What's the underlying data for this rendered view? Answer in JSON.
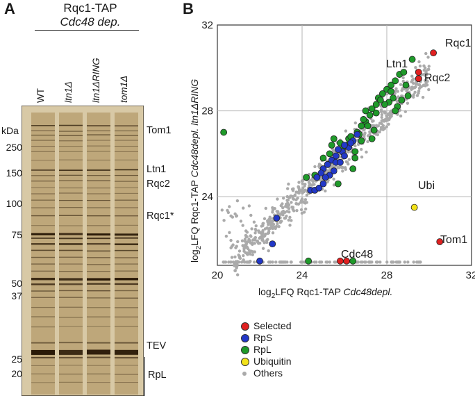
{
  "panelA": {
    "letter": "A",
    "title": "Rqc1-TAP",
    "subtitle": "Cdc48 dep.",
    "lanes": [
      "WT",
      "ltn1Δ",
      "ltn1ΔRING",
      "tom1Δ"
    ],
    "mw_unit": "kDa",
    "mw_markers": [
      "250",
      "150",
      "100",
      "75",
      "50",
      "37",
      "25",
      "20"
    ],
    "band_labels": [
      "Tom1",
      "Ltn1",
      "Rqc2",
      "Rqc1*",
      "TEV",
      "RpL"
    ]
  },
  "panelB": {
    "letter": "B",
    "annotations": [
      "Rqc1",
      "Ltn1",
      "Rqc2",
      "Ubi",
      "Tom1",
      "Cdc48"
    ],
    "colors": {
      "Selected": "#e02020",
      "RpS": "#2238c8",
      "RpL": "#1f9a2a",
      "Ubiquitin": "#f2e21a",
      "Others": "#aaaaaa"
    }
  },
  "legend": [
    {
      "label": "Selected",
      "color": "#e02020"
    },
    {
      "label": "RpS",
      "color": "#2238c8"
    },
    {
      "label": "RpL",
      "color": "#1f9a2a"
    },
    {
      "label": "Ubiquitin",
      "color": "#f2e21a"
    },
    {
      "label": "Others",
      "color": "#aaaaaa"
    }
  ],
  "chart_data": {
    "type": "scatter",
    "xlabel_pre": "log",
    "xlabel_sub": "2",
    "xlabel_mid": "LFQ Rqc1-TAP ",
    "xlabel_it": "Cdc48depl.",
    "ylabel_pre": "log",
    "ylabel_sub": "2",
    "ylabel_mid": "LFQ Rqc1-TAP ",
    "ylabel_it": "Cdc48depl. ltn1ΔRING",
    "xlim": [
      20,
      32
    ],
    "ylim": [
      20.8,
      32
    ],
    "xticks": [
      "20",
      "24",
      "28",
      "32"
    ],
    "yticks": [
      "24",
      "28",
      "32"
    ],
    "series": [
      {
        "name": "Selected",
        "points": [
          [
            30.2,
            30.7
          ],
          [
            29.5,
            29.8
          ],
          [
            29.5,
            29.5
          ],
          [
            30.5,
            21.9
          ],
          [
            25.8,
            21.0
          ],
          [
            26.1,
            21.0
          ]
        ]
      },
      {
        "name": "RpS",
        "points": [
          [
            24.4,
            24.3
          ],
          [
            24.6,
            24.3
          ],
          [
            24.8,
            24.4
          ],
          [
            25.0,
            24.6
          ],
          [
            24.7,
            24.9
          ],
          [
            25.3,
            25.0
          ],
          [
            25.0,
            25.3
          ],
          [
            25.4,
            25.7
          ],
          [
            25.6,
            25.6
          ],
          [
            25.8,
            25.6
          ],
          [
            25.6,
            25.9
          ],
          [
            25.9,
            26.1
          ],
          [
            26.0,
            25.9
          ],
          [
            26.2,
            26.3
          ],
          [
            26.4,
            26.6
          ],
          [
            26.0,
            26.4
          ],
          [
            25.7,
            26.2
          ],
          [
            26.6,
            26.9
          ],
          [
            26.3,
            26.5
          ],
          [
            25.2,
            25.5
          ],
          [
            24.9,
            25.1
          ],
          [
            25.1,
            24.9
          ],
          [
            25.5,
            25.2
          ],
          [
            22.8,
            23.0
          ],
          [
            22.6,
            21.8
          ],
          [
            22.0,
            21.0
          ]
        ]
      },
      {
        "name": "RpL",
        "points": [
          [
            20.3,
            27.0
          ],
          [
            24.3,
            21.0
          ],
          [
            26.4,
            21.0
          ],
          [
            24.6,
            25.0
          ],
          [
            25.4,
            26.4
          ],
          [
            25.9,
            26.2
          ],
          [
            26.2,
            26.7
          ],
          [
            26.6,
            27.0
          ],
          [
            26.8,
            27.3
          ],
          [
            27.0,
            27.5
          ],
          [
            27.2,
            27.8
          ],
          [
            27.3,
            28.1
          ],
          [
            27.5,
            28.3
          ],
          [
            27.6,
            28.6
          ],
          [
            27.8,
            28.8
          ],
          [
            28.0,
            29.0
          ],
          [
            28.2,
            29.2
          ],
          [
            28.4,
            29.4
          ],
          [
            28.6,
            29.7
          ],
          [
            28.8,
            29.8
          ],
          [
            29.2,
            30.4
          ],
          [
            28.3,
            28.6
          ],
          [
            28.1,
            28.4
          ],
          [
            28.5,
            28.2
          ],
          [
            28.7,
            28.5
          ],
          [
            27.9,
            28.3
          ],
          [
            27.5,
            27.9
          ],
          [
            27.1,
            27.3
          ],
          [
            26.7,
            26.9
          ],
          [
            26.3,
            26.8
          ],
          [
            26.1,
            26.4
          ],
          [
            26.9,
            27.6
          ],
          [
            25.8,
            26.5
          ],
          [
            26.5,
            26.1
          ],
          [
            27.4,
            27.1
          ],
          [
            28.9,
            29.2
          ],
          [
            29.0,
            28.7
          ],
          [
            28.2,
            28.9
          ],
          [
            27.7,
            28.5
          ],
          [
            25.5,
            26.7
          ],
          [
            25.3,
            26.0
          ],
          [
            26.8,
            26.6
          ],
          [
            27.3,
            26.7
          ],
          [
            26.5,
            25.8
          ],
          [
            26.4,
            25.3
          ],
          [
            25.7,
            24.6
          ],
          [
            24.2,
            24.9
          ],
          [
            25.0,
            25.8
          ],
          [
            27.0,
            28.0
          ],
          [
            28.4,
            28.0
          ]
        ]
      },
      {
        "name": "Ubiquitin",
        "points": [
          [
            29.3,
            23.5
          ]
        ]
      }
    ],
    "others_count": 800
  }
}
